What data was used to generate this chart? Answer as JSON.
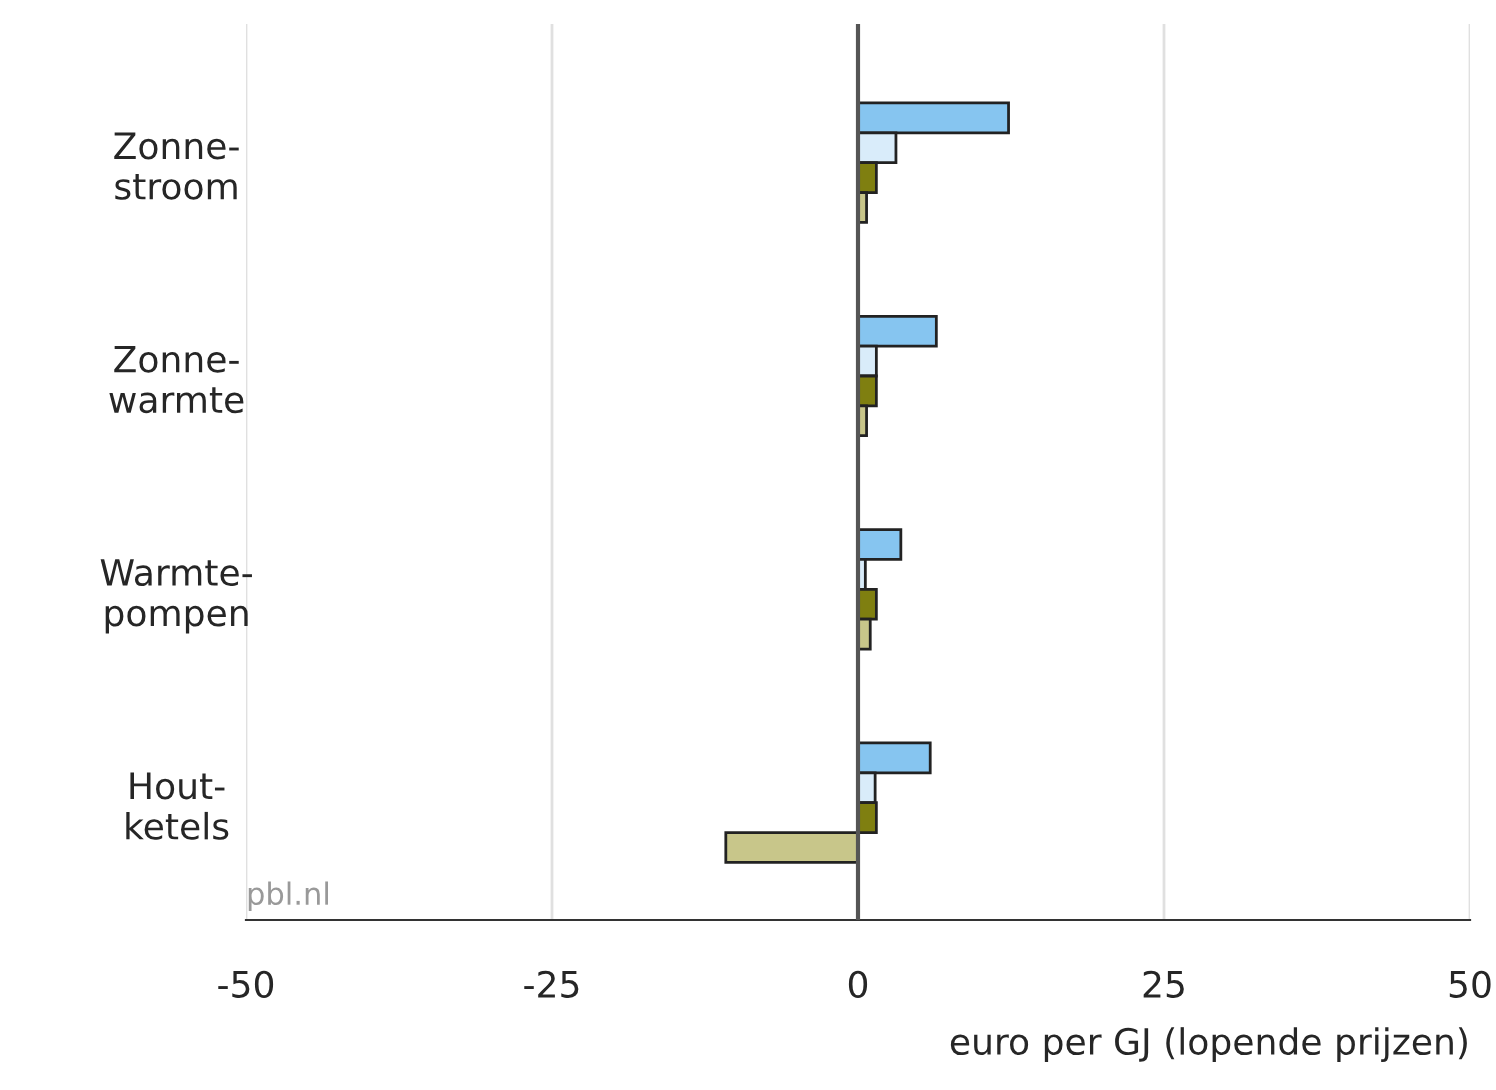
{
  "chart_data": {
    "type": "bar",
    "orientation": "horizontal",
    "xlabel": "euro per GJ (lopende prijzen)",
    "categories": [
      "Zonne-\nstroom",
      "Zonne-\nwarmte",
      "Warmte-\npompen",
      "Hout-\nketels"
    ],
    "series": [
      {
        "color": "#86c5f0",
        "values": [
          12.3,
          6.4,
          3.5,
          5.9
        ]
      },
      {
        "color": "#d9ecfa",
        "values": [
          3.1,
          1.5,
          0.6,
          1.4
        ]
      },
      {
        "color": "#7f7f10",
        "values": [
          1.5,
          1.5,
          1.5,
          1.5
        ]
      },
      {
        "color": "#c8c68a",
        "values": [
          0.7,
          0.7,
          1.0,
          -10.8
        ]
      }
    ],
    "xlim": [
      -50,
      50
    ],
    "xticks": [
      -50,
      -25,
      0,
      25,
      50
    ],
    "grid": "x",
    "legend": false,
    "ref_lines": [
      {
        "axis": "x",
        "value": 0,
        "color": "#555555"
      }
    ],
    "annotations": [
      "pbl.nl"
    ]
  }
}
